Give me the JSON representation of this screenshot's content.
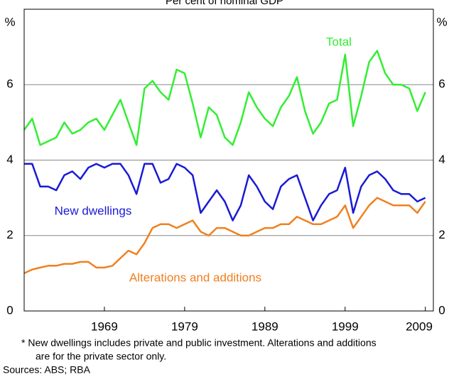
{
  "chart_data": {
    "type": "line",
    "subtitle": "Per cent of nominal GDP",
    "yaxis_label": "%",
    "y2axis_label": "%",
    "x": [
      1959,
      1960,
      1961,
      1962,
      1963,
      1964,
      1965,
      1966,
      1967,
      1968,
      1969,
      1970,
      1971,
      1972,
      1973,
      1974,
      1975,
      1976,
      1977,
      1978,
      1979,
      1980,
      1981,
      1982,
      1983,
      1984,
      1985,
      1986,
      1987,
      1988,
      1989,
      1990,
      1991,
      1992,
      1993,
      1994,
      1995,
      1996,
      1997,
      1998,
      1999,
      2000,
      2001,
      2002,
      2003,
      2004,
      2005,
      2006,
      2007,
      2008,
      2009
    ],
    "series": [
      {
        "name": "Total",
        "color": "#33ee33",
        "values": [
          4.8,
          5.1,
          4.4,
          4.5,
          4.6,
          5.0,
          4.7,
          4.8,
          5.0,
          5.1,
          4.8,
          5.2,
          5.6,
          5.0,
          4.4,
          5.9,
          6.1,
          5.8,
          5.6,
          6.4,
          6.3,
          5.5,
          4.6,
          5.4,
          5.2,
          4.6,
          4.4,
          5.0,
          5.8,
          5.4,
          5.1,
          4.9,
          5.4,
          5.7,
          6.2,
          5.3,
          4.7,
          5.0,
          5.5,
          5.6,
          6.8,
          4.9,
          5.7,
          6.6,
          6.9,
          6.3,
          6.0,
          6.0,
          5.9,
          5.3,
          5.8
        ]
      },
      {
        "name": "New dwellings",
        "color": "#1a1ad6",
        "values": [
          3.9,
          3.9,
          3.3,
          3.3,
          3.2,
          3.6,
          3.7,
          3.5,
          3.8,
          3.9,
          3.8,
          3.9,
          3.9,
          3.6,
          3.1,
          3.9,
          3.9,
          3.4,
          3.5,
          3.9,
          3.8,
          3.6,
          2.6,
          2.9,
          3.2,
          2.9,
          2.4,
          2.8,
          3.6,
          3.3,
          2.9,
          2.7,
          3.3,
          3.5,
          3.6,
          3.0,
          2.4,
          2.8,
          3.1,
          3.2,
          3.8,
          2.6,
          3.3,
          3.6,
          3.7,
          3.5,
          3.2,
          3.1,
          3.1,
          2.9,
          3.0
        ]
      },
      {
        "name": "Alterations and additions",
        "color": "#f08020",
        "values": [
          1.0,
          1.1,
          1.15,
          1.2,
          1.2,
          1.25,
          1.25,
          1.3,
          1.3,
          1.15,
          1.15,
          1.2,
          1.4,
          1.6,
          1.5,
          1.8,
          2.2,
          2.3,
          2.3,
          2.2,
          2.3,
          2.4,
          2.1,
          2.0,
          2.2,
          2.2,
          2.1,
          2.0,
          2.0,
          2.1,
          2.2,
          2.2,
          2.3,
          2.3,
          2.5,
          2.4,
          2.3,
          2.3,
          2.4,
          2.5,
          2.8,
          2.2,
          2.5,
          2.8,
          3.0,
          2.9,
          2.8,
          2.8,
          2.8,
          2.6,
          2.9
        ]
      }
    ],
    "xlim": [
      1959,
      2010
    ],
    "xticks": [
      1969,
      1979,
      1989,
      1999,
      2009
    ],
    "ylim": [
      0,
      8
    ],
    "yticks": [
      0,
      2,
      4,
      6
    ],
    "grid": true,
    "notes": [
      "*   New dwellings includes private and public investment. Alterations and additions",
      "are for the private sector only.",
      "Sources: ABS; RBA"
    ]
  }
}
